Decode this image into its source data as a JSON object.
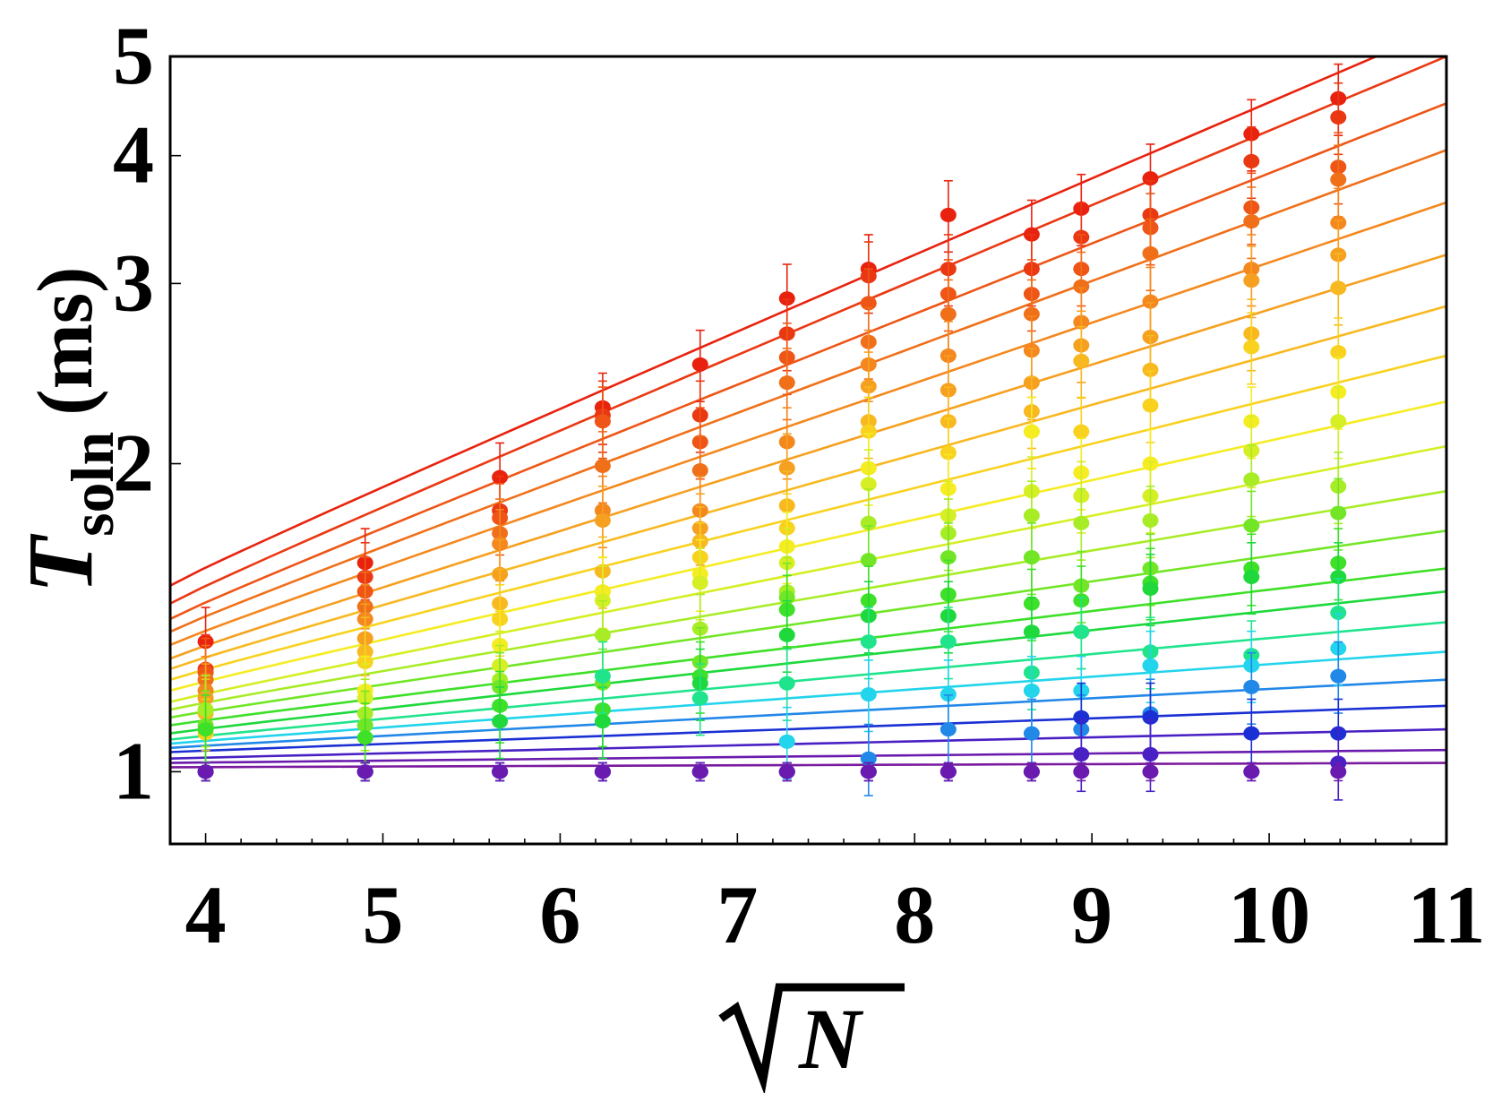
{
  "chart_data": {
    "type": "scatter",
    "title": "",
    "xlabel": "√N",
    "xlabel_parts": {
      "radical": "√",
      "symbol": "N"
    },
    "ylabel": "T_soln (ms)",
    "ylabel_parts": {
      "symbol": "T",
      "subscript": "soln",
      "unit": "(ms)"
    },
    "xlim": [
      3.8,
      11
    ],
    "ylim": [
      0.85,
      5
    ],
    "y_scale": "log",
    "x_ticks": [
      4,
      5,
      6,
      7,
      8,
      9,
      10,
      11
    ],
    "y_ticks": [
      1,
      2,
      3,
      4,
      5
    ],
    "grid": false,
    "legend": "none",
    "x": [
      4,
      4.9,
      5.66,
      6.24,
      6.79,
      7.28,
      7.74,
      8.19,
      8.66,
      8.94,
      9.33,
      9.9,
      10.39
    ],
    "series": [
      {
        "color": "#e8220e",
        "fit_start": 1.52,
        "fit_end": 5.35,
        "points": [
          [
            4,
            1.34
          ],
          [
            4.9,
            1.6
          ],
          [
            5.66,
            1.94
          ],
          [
            6.24,
            2.27
          ],
          [
            6.79,
            2.5
          ],
          [
            7.28,
            2.9
          ],
          [
            7.74,
            3.1
          ],
          [
            8.19,
            3.5
          ],
          [
            8.66,
            3.35
          ],
          [
            8.94,
            3.55
          ],
          [
            9.33,
            3.8
          ],
          [
            9.9,
            4.2
          ],
          [
            10.39,
            4.55
          ]
        ]
      },
      {
        "color": "#ea3812",
        "fit_start": 1.46,
        "fit_end": 5.0,
        "points": [
          [
            4,
            1.26
          ],
          [
            4.9,
            1.55
          ],
          [
            5.66,
            1.8
          ],
          [
            6.24,
            2.23
          ],
          [
            6.79,
            2.23
          ],
          [
            7.28,
            2.68
          ],
          [
            7.74,
            3.05
          ],
          [
            8.19,
            3.1
          ],
          [
            8.66,
            3.1
          ],
          [
            8.94,
            3.33
          ],
          [
            9.33,
            3.5
          ],
          [
            9.9,
            3.95
          ],
          [
            10.39,
            4.36
          ]
        ]
      },
      {
        "color": "#ee5516",
        "fit_start": 1.41,
        "fit_end": 4.5,
        "points": [
          [
            4,
            1.25
          ],
          [
            4.9,
            1.5
          ],
          [
            5.66,
            1.77
          ],
          [
            6.24,
            2.2
          ],
          [
            6.79,
            2.1
          ],
          [
            7.28,
            2.54
          ],
          [
            7.74,
            2.87
          ],
          [
            8.19,
            2.93
          ],
          [
            8.66,
            2.93
          ],
          [
            8.94,
            3.1
          ],
          [
            9.33,
            3.4
          ],
          [
            9.9,
            3.56
          ],
          [
            10.39,
            3.9
          ]
        ]
      },
      {
        "color": "#f0701a",
        "fit_start": 1.37,
        "fit_end": 4.05,
        "points": [
          [
            4,
            1.23
          ],
          [
            4.9,
            1.45
          ],
          [
            5.66,
            1.71
          ],
          [
            6.24,
            1.99
          ],
          [
            6.79,
            1.97
          ],
          [
            7.28,
            2.4
          ],
          [
            7.74,
            2.63
          ],
          [
            8.19,
            2.8
          ],
          [
            8.66,
            2.8
          ],
          [
            8.94,
            2.98
          ],
          [
            9.33,
            3.21
          ],
          [
            9.9,
            3.45
          ],
          [
            10.39,
            3.79
          ]
        ]
      },
      {
        "color": "#f4881e",
        "fit_start": 1.33,
        "fit_end": 3.6,
        "points": [
          [
            4,
            1.2
          ],
          [
            4.9,
            1.41
          ],
          [
            5.66,
            1.67
          ],
          [
            6.24,
            1.8
          ],
          [
            6.79,
            1.8
          ],
          [
            7.28,
            2.1
          ],
          [
            7.74,
            2.5
          ],
          [
            8.19,
            2.55
          ],
          [
            8.66,
            2.58
          ],
          [
            8.94,
            2.75
          ],
          [
            9.33,
            2.88
          ],
          [
            9.9,
            3.1
          ],
          [
            10.39,
            3.44
          ]
        ]
      },
      {
        "color": "#f6a020",
        "fit_start": 1.29,
        "fit_end": 3.2,
        "points": [
          [
            4,
            1.18
          ],
          [
            4.9,
            1.35
          ],
          [
            5.66,
            1.56
          ],
          [
            6.24,
            1.76
          ],
          [
            6.79,
            1.73
          ],
          [
            7.28,
            1.98
          ],
          [
            7.74,
            2.38
          ],
          [
            8.19,
            2.36
          ],
          [
            8.66,
            2.4
          ],
          [
            8.94,
            2.61
          ],
          [
            9.33,
            2.66
          ],
          [
            9.9,
            3.02
          ],
          [
            10.39,
            3.2
          ]
        ]
      },
      {
        "color": "#f8b820",
        "fit_start": 1.26,
        "fit_end": 2.85,
        "points": [
          [
            4,
            1.14
          ],
          [
            4.9,
            1.31
          ],
          [
            5.66,
            1.46
          ],
          [
            6.24,
            1.57
          ],
          [
            6.79,
            1.68
          ],
          [
            7.28,
            1.82
          ],
          [
            7.74,
            2.2
          ],
          [
            8.19,
            2.2
          ],
          [
            8.66,
            2.25
          ],
          [
            8.94,
            2.52
          ],
          [
            9.33,
            2.47
          ],
          [
            9.9,
            2.68
          ],
          [
            10.39,
            2.97
          ]
        ]
      },
      {
        "color": "#f8d21e",
        "fit_start": 1.23,
        "fit_end": 2.55,
        "points": [
          [
            4,
            1.09
          ],
          [
            4.9,
            1.28
          ],
          [
            5.66,
            1.41
          ],
          [
            6.24,
            1.5
          ],
          [
            6.79,
            1.62
          ],
          [
            7.28,
            1.73
          ],
          [
            7.74,
            2.15
          ],
          [
            8.19,
            2.05
          ],
          [
            8.66,
            2.15
          ],
          [
            8.94,
            2.15
          ],
          [
            9.33,
            2.28
          ],
          [
            9.9,
            2.6
          ],
          [
            10.39,
            2.57
          ]
        ]
      },
      {
        "color": "#f6ec22",
        "fit_start": 1.2,
        "fit_end": 2.3,
        "points": [
          [
            4,
            1.0
          ],
          [
            4.9,
            1.2
          ],
          [
            5.66,
            1.33
          ],
          [
            6.24,
            1.5
          ],
          [
            6.79,
            1.56
          ],
          [
            7.28,
            1.66
          ],
          [
            7.74,
            1.98
          ],
          [
            8.19,
            1.89
          ],
          [
            8.66,
            2.15
          ],
          [
            8.94,
            1.96
          ],
          [
            9.33,
            2.0
          ],
          [
            9.9,
            2.2
          ],
          [
            10.39,
            2.35
          ]
        ]
      },
      {
        "color": "#d6ee24",
        "fit_start": 1.17,
        "fit_end": 2.08,
        "points": [
          [
            4,
            1.15
          ],
          [
            4.9,
            1.18
          ],
          [
            5.66,
            1.27
          ],
          [
            6.24,
            1.47
          ],
          [
            6.79,
            1.53
          ],
          [
            7.28,
            1.6
          ],
          [
            7.74,
            1.91
          ],
          [
            8.19,
            1.78
          ],
          [
            8.66,
            1.88
          ],
          [
            8.94,
            1.86
          ],
          [
            9.33,
            1.86
          ],
          [
            9.9,
            2.06
          ],
          [
            10.39,
            2.2
          ]
        ]
      },
      {
        "color": "#a8ec26",
        "fit_start": 1.15,
        "fit_end": 1.88,
        "points": [
          [
            4,
            1.15
          ],
          [
            4.9,
            1.14
          ],
          [
            5.66,
            1.23
          ],
          [
            6.24,
            1.36
          ],
          [
            6.79,
            1.38
          ],
          [
            7.28,
            1.5
          ],
          [
            7.74,
            1.75
          ],
          [
            8.19,
            1.71
          ],
          [
            8.66,
            1.78
          ],
          [
            8.94,
            1.75
          ],
          [
            9.33,
            1.76
          ],
          [
            9.9,
            1.93
          ],
          [
            10.39,
            1.9
          ]
        ]
      },
      {
        "color": "#72e626",
        "fit_start": 1.13,
        "fit_end": 1.72,
        "points": [
          [
            4,
            1.11
          ],
          [
            4.9,
            1.11
          ],
          [
            5.66,
            1.21
          ],
          [
            6.24,
            1.22
          ],
          [
            6.79,
            1.28
          ],
          [
            7.28,
            1.48
          ],
          [
            7.74,
            1.61
          ],
          [
            8.19,
            1.62
          ],
          [
            8.66,
            1.62
          ],
          [
            8.94,
            1.52
          ],
          [
            9.33,
            1.58
          ],
          [
            9.9,
            1.74
          ],
          [
            10.39,
            1.79
          ]
        ]
      },
      {
        "color": "#3ee028",
        "fit_start": 1.11,
        "fit_end": 1.58,
        "points": [
          [
            4,
            1.1
          ],
          [
            4.9,
            1.08
          ],
          [
            5.66,
            1.16
          ],
          [
            6.24,
            1.15
          ],
          [
            6.79,
            1.24
          ],
          [
            7.28,
            1.44
          ],
          [
            7.74,
            1.47
          ],
          [
            8.19,
            1.49
          ],
          [
            8.66,
            1.46
          ],
          [
            8.94,
            1.47
          ],
          [
            9.33,
            1.53
          ],
          [
            9.9,
            1.58
          ],
          [
            10.39,
            1.6
          ]
        ]
      },
      {
        "color": "#1ed83c",
        "fit_start": 1.09,
        "fit_end": 1.5,
        "points": [
          [
            4,
            1.0
          ],
          [
            4.9,
            1.0
          ],
          [
            5.66,
            1.12
          ],
          [
            6.24,
            1.12
          ],
          [
            6.79,
            1.22
          ],
          [
            7.28,
            1.36
          ],
          [
            7.74,
            1.42
          ],
          [
            8.19,
            1.42
          ],
          [
            8.66,
            1.37
          ],
          [
            8.94,
            1.37
          ],
          [
            9.33,
            1.51
          ],
          [
            9.9,
            1.55
          ],
          [
            10.39,
            1.55
          ]
        ]
      },
      {
        "color": "#20e48c",
        "fit_start": 1.075,
        "fit_end": 1.4,
        "points": [
          [
            4,
            1.0
          ],
          [
            4.9,
            1.0
          ],
          [
            5.66,
            1.0
          ],
          [
            6.24,
            1.24
          ],
          [
            6.79,
            1.18
          ],
          [
            7.28,
            1.22
          ],
          [
            7.74,
            1.34
          ],
          [
            8.19,
            1.34
          ],
          [
            8.66,
            1.25
          ],
          [
            8.94,
            1.37
          ],
          [
            9.33,
            1.31
          ],
          [
            9.9,
            1.3
          ],
          [
            10.39,
            1.43
          ]
        ]
      },
      {
        "color": "#22d4ec",
        "fit_start": 1.065,
        "fit_end": 1.31,
        "points": [
          [
            4,
            1.0
          ],
          [
            4.9,
            1.0
          ],
          [
            5.66,
            1.0
          ],
          [
            6.24,
            1.0
          ],
          [
            6.79,
            1.0
          ],
          [
            7.28,
            1.07
          ],
          [
            7.74,
            1.19
          ],
          [
            8.19,
            1.19
          ],
          [
            8.66,
            1.2
          ],
          [
            8.94,
            1.2
          ],
          [
            9.33,
            1.27
          ],
          [
            9.9,
            1.27
          ],
          [
            10.39,
            1.32
          ]
        ]
      },
      {
        "color": "#2288e8",
        "fit_start": 1.055,
        "fit_end": 1.23,
        "points": [
          [
            4,
            1.0
          ],
          [
            4.9,
            1.0
          ],
          [
            5.66,
            1.0
          ],
          [
            6.24,
            1.0
          ],
          [
            6.79,
            1.0
          ],
          [
            7.28,
            1.0
          ],
          [
            7.74,
            1.03
          ],
          [
            8.19,
            1.1
          ],
          [
            8.66,
            1.09
          ],
          [
            8.94,
            1.1
          ],
          [
            9.33,
            1.14
          ],
          [
            9.9,
            1.21
          ],
          [
            10.39,
            1.24
          ]
        ]
      },
      {
        "color": "#1a30d4",
        "fit_start": 1.045,
        "fit_end": 1.16,
        "points": [
          [
            4,
            1.0
          ],
          [
            4.9,
            1.0
          ],
          [
            5.66,
            1.0
          ],
          [
            6.24,
            1.0
          ],
          [
            6.79,
            1.0
          ],
          [
            7.28,
            1.0
          ],
          [
            7.74,
            1.0
          ],
          [
            8.19,
            1.0
          ],
          [
            8.66,
            1.0
          ],
          [
            8.94,
            1.13
          ],
          [
            9.33,
            1.13
          ],
          [
            9.9,
            1.09
          ],
          [
            10.39,
            1.09
          ]
        ]
      },
      {
        "color": "#4820c4",
        "fit_start": 1.03,
        "fit_end": 1.1,
        "points": [
          [
            4,
            1.0
          ],
          [
            4.9,
            1.0
          ],
          [
            5.66,
            1.0
          ],
          [
            6.24,
            1.0
          ],
          [
            6.79,
            1.0
          ],
          [
            7.28,
            1.0
          ],
          [
            7.74,
            1.0
          ],
          [
            8.19,
            1.0
          ],
          [
            8.66,
            1.0
          ],
          [
            8.94,
            1.04
          ],
          [
            9.33,
            1.04
          ],
          [
            9.9,
            1.0
          ],
          [
            10.39,
            1.02
          ]
        ]
      },
      {
        "color": "#6a1aae",
        "fit_start": 1.02,
        "fit_end": 1.05,
        "points": [
          [
            4,
            1.0
          ],
          [
            4.9,
            1.0
          ],
          [
            5.66,
            1.0
          ],
          [
            6.24,
            1.0
          ],
          [
            6.79,
            1.0
          ],
          [
            7.28,
            1.0
          ],
          [
            7.74,
            1.0
          ],
          [
            8.19,
            1.0
          ],
          [
            8.66,
            1.0
          ],
          [
            8.94,
            1.0
          ],
          [
            9.33,
            1.0
          ],
          [
            9.9,
            1.0
          ],
          [
            10.39,
            1.0
          ]
        ]
      },
      {
        "color": "#7a1a9e",
        "fit_start": 1.01,
        "fit_end": 1.02,
        "points": []
      }
    ]
  }
}
